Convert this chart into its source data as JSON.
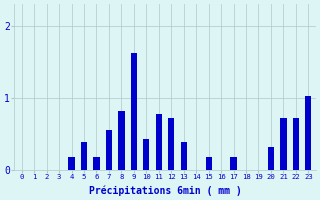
{
  "categories": [
    0,
    1,
    2,
    3,
    4,
    5,
    6,
    7,
    8,
    9,
    10,
    11,
    12,
    13,
    14,
    15,
    16,
    17,
    18,
    19,
    20,
    21,
    22,
    23
  ],
  "values": [
    0,
    0,
    0,
    0,
    0.18,
    0.38,
    0.18,
    0.55,
    0.82,
    1.62,
    0.42,
    0.78,
    0.72,
    0.38,
    0.0,
    0.18,
    0.0,
    0.18,
    0,
    0,
    0.32,
    0.72,
    0.72,
    1.02
  ],
  "bar_color": "#0000cc",
  "background_color": "#ddf5f5",
  "grid_color": "#b0c8c8",
  "xlabel": "Précipitations 6min ( mm )",
  "ylim": [
    0,
    2.3
  ],
  "yticks": [
    0,
    1,
    2
  ],
  "bar_width": 0.5,
  "figsize": [
    3.2,
    2.0
  ],
  "dpi": 100
}
